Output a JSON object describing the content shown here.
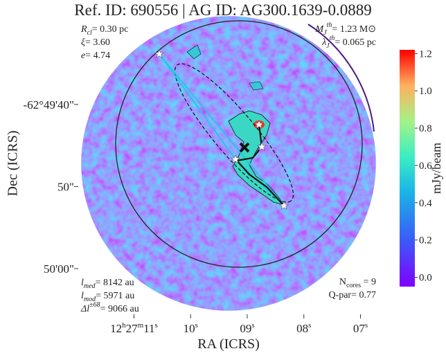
{
  "chart_data": {
    "type": "image",
    "title": "Ref. ID: 690556 | AG ID: AG300.1639-0.0889",
    "xlabel": "RA (ICRS)",
    "ylabel": "Dec (ICRS)",
    "xlim": [
      11.96,
      6.7
    ],
    "xticks": [
      {
        "value": 11,
        "label": "12h27m11s"
      },
      {
        "value": 10,
        "label": "10s"
      },
      {
        "value": 9,
        "label": "09s"
      },
      {
        "value": 8,
        "label": "08s"
      },
      {
        "value": 7,
        "label": "07s"
      }
    ],
    "ylim": [
      65.4,
      29.3
    ],
    "yticks": [
      {
        "value": 40,
        "label": "-62°49'40\""
      },
      {
        "value": 50,
        "label": "50\""
      },
      {
        "value": 60,
        "label": "50'00\""
      }
    ],
    "colorbar": {
      "label": "mJy/beam",
      "lim": [
        -0.05,
        1.22
      ],
      "ticks": [
        {
          "value": 0,
          "label": "0.0"
        },
        0.2,
        0.4,
        0.6,
        0.8,
        {
          "value": 1,
          "label": "1.0"
        },
        1.2
      ]
    },
    "annotations": [
      {
        "corner": "top-left",
        "lines": [
          {
            "base": "R",
            "sub": "cl",
            "text": "= 0.30 pc"
          },
          {
            "base": "ξ",
            "text": "= 3.60"
          },
          {
            "base": "e",
            "text": "= 4.74"
          }
        ]
      },
      {
        "corner": "top-right",
        "lines": [
          {
            "base": "M",
            "sub": "J",
            "sup": "th",
            "text": "= 1.23 M⊙"
          },
          {
            "base": "λ",
            "sub": "J",
            "sup": "th",
            "text": "= 0.065 pc"
          }
        ]
      },
      {
        "corner": "bottom-left",
        "lines": [
          {
            "base": "l",
            "sub": "med",
            "text": "= 8142 au"
          },
          {
            "base": "l",
            "sub": "mod",
            "text": "= 5971 au"
          },
          {
            "base": "Δl",
            "sup": "±68",
            "text": "= 9066 au"
          }
        ]
      },
      {
        "corner": "bottom-right",
        "lines": [
          {
            "upright": "N",
            "sub": "cores",
            "text": " = 9"
          },
          {
            "upright": "Q-par",
            "text": "= 0.77"
          }
        ]
      }
    ]
  }
}
